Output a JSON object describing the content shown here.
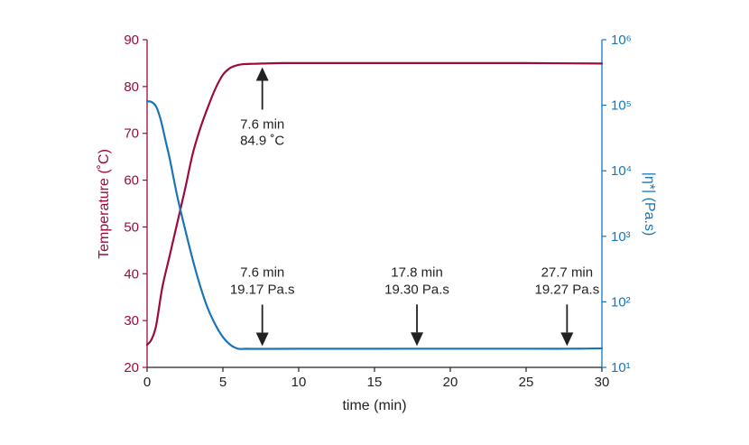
{
  "chart_data": {
    "type": "line",
    "x_axis": {
      "label": "time (min)",
      "range": [
        0,
        30
      ],
      "ticks": [
        "0",
        "5",
        "10",
        "15",
        "20",
        "25",
        "30"
      ]
    },
    "y_left_axis": {
      "label": "Temperature (˚C)",
      "range": [
        20,
        90
      ],
      "ticks": [
        "20",
        "30",
        "40",
        "50",
        "60",
        "70",
        "80",
        "90"
      ],
      "color": "#9b0b3f"
    },
    "y_right_axis": {
      "label": "|η*| (Pa.s)",
      "scale": "log",
      "range": [
        10,
        1000000
      ],
      "tick_values": [
        10,
        100,
        1000,
        10000,
        100000,
        1000000
      ],
      "ticks": [
        "10¹",
        "10²",
        "10³",
        "10⁴",
        "10⁵",
        "10⁶"
      ],
      "color": "#1a75b8"
    },
    "series": [
      {
        "axis": "left",
        "color": "#9b0b3f",
        "x": [
          0,
          0.3,
          0.6,
          1.0,
          1.5,
          2.0,
          2.5,
          3.0,
          3.5,
          4.0,
          4.5,
          5.0,
          5.5,
          6.0,
          6.5,
          7.0,
          7.6,
          9.0,
          12.0,
          16.0,
          20.0,
          25.0,
          30.0
        ],
        "y": [
          24.8,
          26.0,
          29.0,
          37.0,
          44.0,
          51.0,
          58.0,
          65.5,
          71.0,
          75.5,
          79.5,
          82.5,
          84.0,
          84.6,
          84.8,
          84.85,
          84.9,
          85.0,
          85.0,
          85.0,
          85.0,
          85.0,
          84.9
        ]
      },
      {
        "axis": "right",
        "color": "#1a75b8",
        "x": [
          0,
          0.3,
          0.6,
          0.9,
          1.2,
          1.5,
          2.0,
          2.5,
          3.0,
          3.5,
          4.0,
          4.5,
          5.0,
          5.5,
          6.0,
          6.5,
          7.6,
          10.0,
          15.0,
          17.8,
          20.0,
          25.0,
          27.7,
          30.0
        ],
        "y": [
          115000,
          112000,
          95000,
          60000,
          30000,
          15000,
          4000,
          1300,
          450,
          175,
          80,
          45,
          29,
          22,
          19.3,
          19.2,
          19.17,
          19.2,
          19.25,
          19.3,
          19.3,
          19.3,
          19.27,
          19.5
        ]
      }
    ],
    "annotations": [
      {
        "lines": [
          "7.6 min",
          "84.9 ˚C"
        ],
        "x": 7.6,
        "target_axis": "left",
        "target_y": 84.9,
        "direction": "up"
      },
      {
        "lines": [
          "7.6 min",
          "19.17 Pa.s"
        ],
        "x": 7.6,
        "target_axis": "right",
        "target_y": 19.17,
        "direction": "down"
      },
      {
        "lines": [
          "17.8 min",
          "19.30 Pa.s"
        ],
        "x": 17.8,
        "target_axis": "right",
        "target_y": 19.3,
        "direction": "down"
      },
      {
        "lines": [
          "27.7 min",
          "19.27 Pa.s"
        ],
        "x": 27.7,
        "target_axis": "right",
        "target_y": 19.27,
        "direction": "down"
      }
    ],
    "grid": false,
    "legend": "none"
  }
}
